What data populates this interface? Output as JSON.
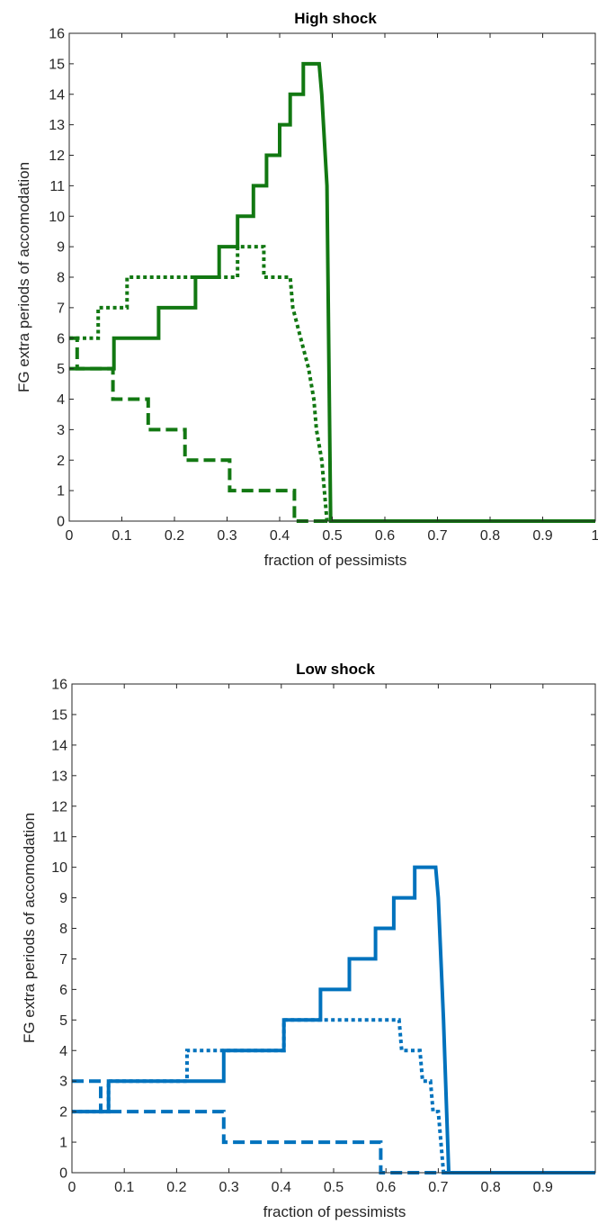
{
  "chart_data": [
    {
      "type": "line",
      "title": "High shock",
      "xlabel": "fraction of pessimists",
      "ylabel": "FG extra periods of accomodation",
      "xlim": [
        0,
        1
      ],
      "ylim": [
        0,
        16
      ],
      "xticks": [
        "0",
        "0.1",
        "0.2",
        "0.3",
        "0.4",
        "0.5",
        "0.6",
        "0.7",
        "0.8",
        "0.9",
        "1"
      ],
      "yticks": [
        "0",
        "1",
        "2",
        "3",
        "4",
        "5",
        "6",
        "7",
        "8",
        "9",
        "10",
        "11",
        "12",
        "13",
        "14",
        "15",
        "16"
      ],
      "grid": false,
      "color": "#127812",
      "series": [
        {
          "style": "solid",
          "x": [
            0,
            0.085,
            0.085,
            0.17,
            0.17,
            0.24,
            0.24,
            0.285,
            0.285,
            0.32,
            0.32,
            0.35,
            0.35,
            0.375,
            0.375,
            0.4,
            0.4,
            0.42,
            0.42,
            0.445,
            0.445,
            0.475,
            0.48,
            0.49,
            0.497,
            1
          ],
          "y": [
            5,
            5,
            6,
            6,
            7,
            7,
            8,
            8,
            9,
            9,
            10,
            10,
            11,
            11,
            12,
            12,
            13,
            13,
            14,
            14,
            15,
            15,
            14,
            11,
            0,
            0
          ]
        },
        {
          "style": "dotted",
          "x": [
            0,
            0.055,
            0.055,
            0.11,
            0.11,
            0.215,
            0.215,
            0.32,
            0.32,
            0.37,
            0.37,
            0.42,
            0.425,
            0.44,
            0.455,
            0.465,
            0.47,
            0.48,
            0.49,
            1
          ],
          "y": [
            6,
            6,
            7,
            7,
            8,
            8,
            8,
            8,
            9,
            9,
            8,
            8,
            7,
            6,
            5,
            4,
            3,
            2,
            0,
            0
          ]
        },
        {
          "style": "dashed",
          "x": [
            0,
            0.015,
            0.015,
            0.083,
            0.083,
            0.15,
            0.15,
            0.22,
            0.22,
            0.305,
            0.305,
            0.428,
            0.428,
            1
          ],
          "y": [
            6,
            6,
            5,
            5,
            4,
            4,
            3,
            3,
            2,
            2,
            1,
            1,
            0,
            0
          ]
        }
      ]
    },
    {
      "type": "line",
      "title": "Low shock",
      "xlabel": "fraction of pessimists",
      "ylabel": "FG extra periods of accomodation",
      "xlim": [
        0,
        1
      ],
      "ylim": [
        0,
        16
      ],
      "xticks": [
        "0",
        "0.1",
        "0.2",
        "0.3",
        "0.4",
        "0.5",
        "0.6",
        "0.7",
        "0.8",
        "0.9"
      ],
      "yticks": [
        "0",
        "1",
        "2",
        "3",
        "4",
        "5",
        "6",
        "7",
        "8",
        "9",
        "10",
        "11",
        "12",
        "13",
        "14",
        "15",
        "16"
      ],
      "grid": false,
      "color": "#0072bd",
      "series": [
        {
          "style": "solid",
          "x": [
            0,
            0.07,
            0.07,
            0.29,
            0.29,
            0.405,
            0.405,
            0.475,
            0.475,
            0.53,
            0.53,
            0.58,
            0.58,
            0.615,
            0.615,
            0.655,
            0.655,
            0.695,
            0.7,
            0.71,
            0.72,
            1
          ],
          "y": [
            2,
            2,
            3,
            3,
            4,
            4,
            5,
            5,
            6,
            6,
            7,
            7,
            8,
            8,
            9,
            9,
            10,
            10,
            9,
            5,
            0,
            0
          ]
        },
        {
          "style": "dotted",
          "x": [
            0,
            0.07,
            0.07,
            0.22,
            0.22,
            0.405,
            0.405,
            0.625,
            0.63,
            0.665,
            0.67,
            0.685,
            0.69,
            0.7,
            0.71,
            1
          ],
          "y": [
            2,
            2,
            3,
            3,
            4,
            4,
            5,
            5,
            4,
            4,
            3,
            3,
            2,
            2,
            0,
            0
          ]
        },
        {
          "style": "dashed",
          "x": [
            0,
            0.055,
            0.055,
            0.29,
            0.29,
            0.59,
            0.59,
            1
          ],
          "y": [
            3,
            3,
            2,
            2,
            1,
            1,
            0,
            0
          ]
        }
      ]
    }
  ]
}
